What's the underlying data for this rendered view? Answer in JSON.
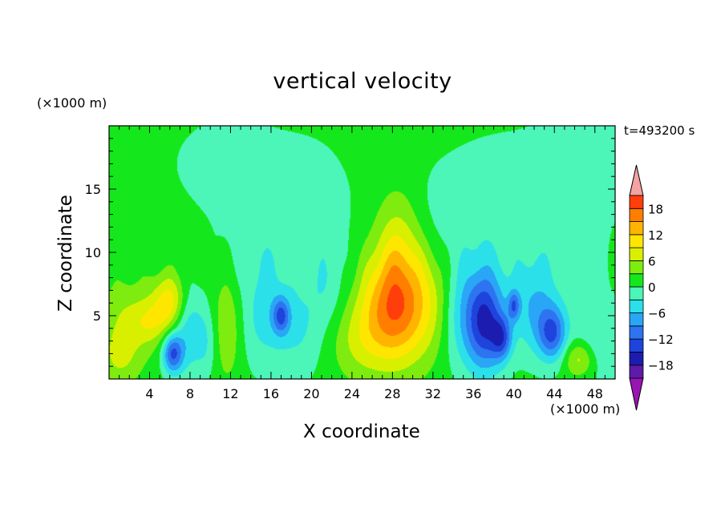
{
  "chart_data": {
    "type": "heatmap",
    "title": "vertical velocity",
    "xlabel": "X coordinate",
    "ylabel": "Z coordinate",
    "x_unit": "(×1000 m)",
    "y_unit": "(×1000 m)",
    "timestamp": "t=493200 s",
    "xlim": [
      0,
      50
    ],
    "ylim": [
      0,
      20
    ],
    "x_ticks": [
      4,
      8,
      12,
      16,
      20,
      24,
      28,
      32,
      36,
      40,
      44,
      48
    ],
    "y_ticks": [
      5,
      10,
      15
    ],
    "colorbar": {
      "levels": [
        -21,
        -18,
        -15,
        -12,
        -9,
        -6,
        -3,
        0,
        3,
        6,
        9,
        12,
        15,
        18,
        21
      ],
      "tick_values": [
        18,
        12,
        6,
        0,
        -6,
        -12,
        -18
      ],
      "tick_labels": [
        "18",
        "12",
        "6",
        "0",
        "−6",
        "−12",
        "−18"
      ],
      "colors": [
        "#5e1aa8",
        "#1c1cb0",
        "#1e44dc",
        "#2e73f0",
        "#29a6f5",
        "#2ce0ea",
        "#4cf5b8",
        "#14e81c",
        "#7eec0e",
        "#d8f000",
        "#ffe600",
        "#ffb400",
        "#ff7e00",
        "#ff3e0c"
      ],
      "over_color": "#f4a2a2",
      "under_color": "#9a14b4"
    },
    "background_value": 1,
    "features": [
      {
        "x": 28.3,
        "z": 5.5,
        "sx": 2.4,
        "sz": 3.1,
        "amp": 16
      },
      {
        "x": 28.6,
        "z": 10.5,
        "sx": 1.6,
        "sz": 3.2,
        "amp": 6
      },
      {
        "x": 24.5,
        "z": 3.0,
        "sx": 2.0,
        "sz": 2.2,
        "amp": 4
      },
      {
        "x": 32.0,
        "z": 6.5,
        "sx": 1.3,
        "sz": 3.0,
        "amp": 3
      },
      {
        "x": 6.0,
        "z": 6.2,
        "sx": 1.2,
        "sz": 1.5,
        "amp": 9
      },
      {
        "x": 1.8,
        "z": 4.5,
        "sx": 2.0,
        "sz": 2.3,
        "amp": 5
      },
      {
        "x": 4.2,
        "z": 4.5,
        "sx": 1.3,
        "sz": 1.2,
        "amp": 5
      },
      {
        "x": 6.3,
        "z": 2.0,
        "sx": 0.7,
        "sz": 1.1,
        "amp": -13
      },
      {
        "x": 7.8,
        "z": 4.0,
        "sx": 1.0,
        "sz": 2.5,
        "amp": -6
      },
      {
        "x": 11.7,
        "z": 4.2,
        "sx": 1.1,
        "sz": 3.0,
        "amp": 5
      },
      {
        "x": 9.6,
        "z": 3.0,
        "sx": 0.8,
        "sz": 2.0,
        "amp": -4
      },
      {
        "x": 15.5,
        "z": 4.8,
        "sx": 2.0,
        "sz": 2.8,
        "amp": -5
      },
      {
        "x": 17.0,
        "z": 5.0,
        "sx": 0.6,
        "sz": 1.0,
        "amp": -10
      },
      {
        "x": 19.0,
        "z": 3.5,
        "sx": 1.5,
        "sz": 2.5,
        "amp": -3
      },
      {
        "x": 37.2,
        "z": 4.5,
        "sx": 1.3,
        "sz": 2.7,
        "amp": -15
      },
      {
        "x": 38.8,
        "z": 3.2,
        "sx": 0.7,
        "sz": 1.2,
        "amp": -10
      },
      {
        "x": 40.0,
        "z": 5.8,
        "sx": 0.4,
        "sz": 0.8,
        "amp": -9
      },
      {
        "x": 35.0,
        "z": 5.0,
        "sx": 1.5,
        "sz": 3.0,
        "amp": -5
      },
      {
        "x": 43.8,
        "z": 3.6,
        "sx": 1.0,
        "sz": 1.5,
        "amp": -12
      },
      {
        "x": 42.0,
        "z": 5.5,
        "sx": 1.5,
        "sz": 2.5,
        "amp": -6
      },
      {
        "x": 46.5,
        "z": 1.6,
        "sx": 1.1,
        "sz": 1.0,
        "amp": 7
      },
      {
        "x": 48.3,
        "z": 3.0,
        "sx": 1.6,
        "sz": 2.2,
        "amp": -4
      },
      {
        "x": 1.0,
        "z": 1.5,
        "sx": 1.4,
        "sz": 1.5,
        "amp": 4
      },
      {
        "x": 21.5,
        "z": 7.0,
        "sx": 1.5,
        "sz": 2.5,
        "amp": -3
      },
      {
        "x": 14.5,
        "z": 9.5,
        "sx": 2.5,
        "sz": 2.0,
        "amp": -2
      },
      {
        "x": 33.5,
        "z": 13.0,
        "sx": 3.0,
        "sz": 2.5,
        "amp": -1.5
      },
      {
        "x": 46.0,
        "z": 9.0,
        "sx": 3.0,
        "sz": 3.0,
        "amp": -1.5
      },
      {
        "x": 4.0,
        "z": 17.0,
        "sx": 4.0,
        "sz": 3.0,
        "amp": -0.2
      },
      {
        "x": 39.0,
        "z": 12.5,
        "sx": 5.0,
        "sz": 5.0,
        "amp": -2.5
      },
      {
        "x": 47.0,
        "z": 17.0,
        "sx": 3.0,
        "sz": 3.0,
        "amp": -2.5
      },
      {
        "x": 12.0,
        "z": 17.0,
        "sx": 4.0,
        "sz": 3.0,
        "amp": -2
      },
      {
        "x": 20.0,
        "z": 13.0,
        "sx": 3.0,
        "sz": 4.0,
        "amp": -2.5
      },
      {
        "x": 14.0,
        "z": 13.5,
        "sx": 2.5,
        "sz": 2.5,
        "amp": -1.2
      }
    ]
  }
}
